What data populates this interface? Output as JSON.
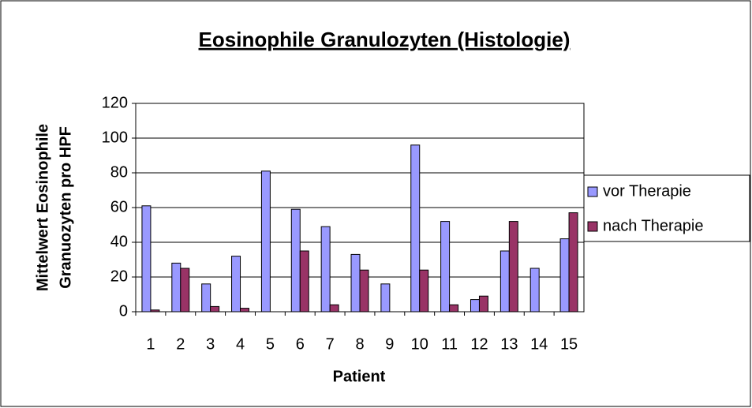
{
  "chart_data": {
    "type": "bar",
    "title": "Eosinophile Granulozyten (Histologie)",
    "xlabel": "Patient",
    "ylabel": [
      "Mittelwert Eosinophile",
      "Granuozyten pro HPF"
    ],
    "categories": [
      "1",
      "2",
      "3",
      "4",
      "5",
      "6",
      "7",
      "8",
      "9",
      "10",
      "11",
      "12",
      "13",
      "14",
      "15"
    ],
    "series": [
      {
        "name": "vor Therapie",
        "color": "#9999ff",
        "values": [
          61,
          28,
          16,
          32,
          81,
          59,
          49,
          33,
          16,
          96,
          52,
          7,
          35,
          25,
          42
        ]
      },
      {
        "name": "nach Therapie",
        "color": "#993366",
        "values": [
          1,
          25,
          3,
          2,
          0,
          35,
          4,
          24,
          0,
          24,
          4,
          9,
          52,
          0,
          57
        ]
      }
    ],
    "ylim": [
      0,
      120
    ],
    "yticks": [
      0,
      20,
      40,
      60,
      80,
      100,
      120
    ],
    "grid": true,
    "legend": "right"
  }
}
